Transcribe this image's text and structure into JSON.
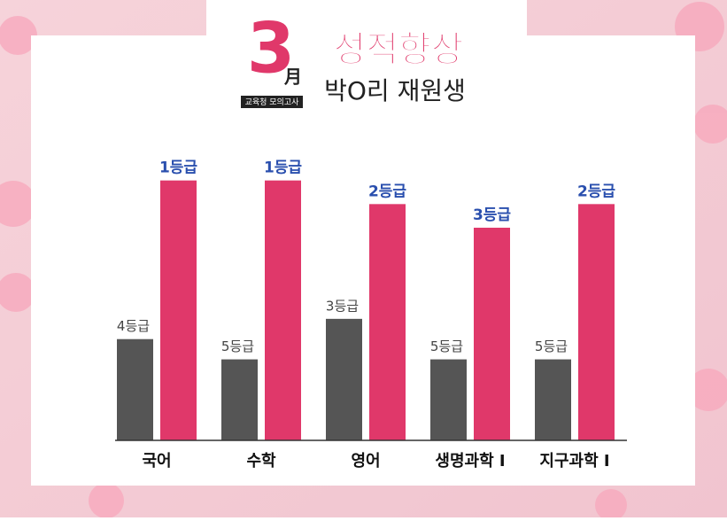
{
  "header": {
    "month_number": "3",
    "month_char": "月",
    "badge": "교육청 모의고사",
    "title": "성적향상",
    "subtitle": "박O리 재원생"
  },
  "chart_data": {
    "type": "bar",
    "categories": [
      "국어",
      "수학",
      "영어",
      "생명과학 Ⅰ",
      "지구과학 Ⅰ"
    ],
    "series": [
      {
        "color": "#555555",
        "label_color": "#444444",
        "values": [
          4,
          5,
          3,
          5,
          5
        ],
        "value_labels": [
          "4등급",
          "5등급",
          "3등급",
          "5등급",
          "5등급"
        ]
      },
      {
        "color": "#e0386a",
        "label_color": "#2a4fae",
        "axis": "y2",
        "values": [
          1,
          1,
          2,
          3,
          2
        ],
        "value_labels": [
          "1등급",
          "1등급",
          "2등급",
          "3등급",
          "2등급"
        ]
      }
    ],
    "ylim": [
      9,
      -5
    ],
    "y2lim": [
      12,
      0
    ]
  }
}
